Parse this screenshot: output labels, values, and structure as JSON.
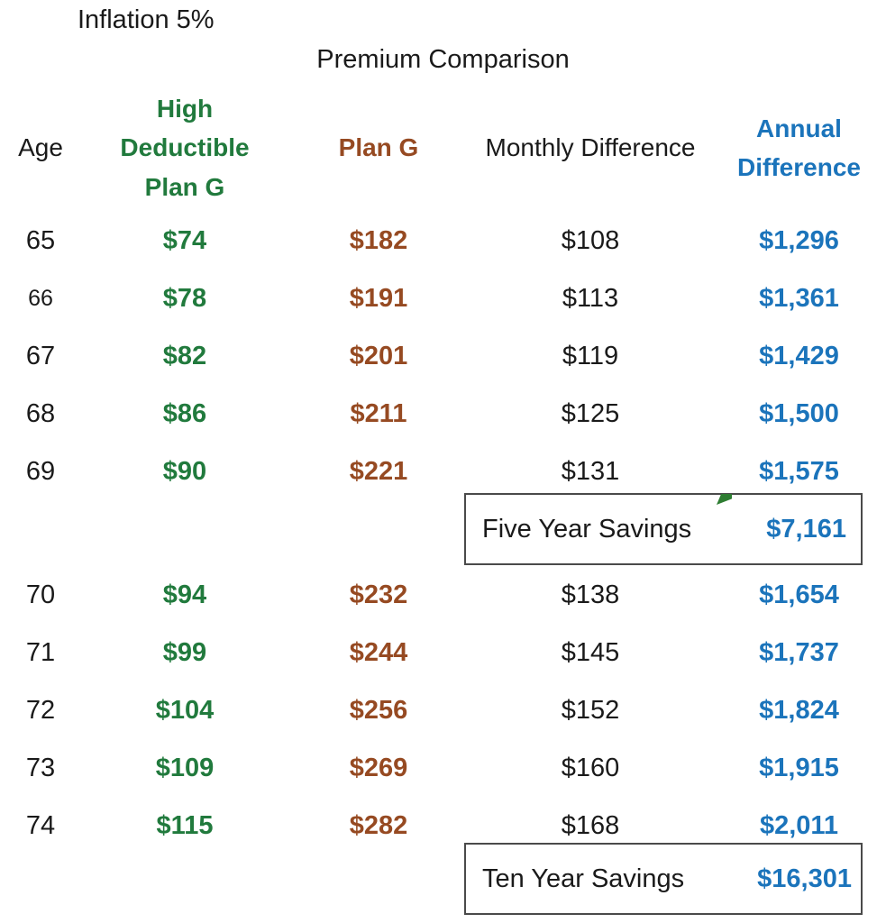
{
  "colors": {
    "green": "#217a3d",
    "brown": "#964a22",
    "blue": "#1b74bb",
    "text": "#1a1a1a",
    "box-border": "#4a4a4a",
    "marker-green": "#2e7d32"
  },
  "chart_data": {
    "type": "table",
    "subtitle": "Inflation 5%",
    "title": "Premium Comparison",
    "columns": [
      "Age",
      "High Deductible Plan G",
      "Plan G",
      "Monthly Difference",
      "Annual Difference"
    ],
    "column_colors": [
      "#1a1a1a",
      "#217a3d",
      "#964a22",
      "#1a1a1a",
      "#1b74bb"
    ],
    "rows": [
      {
        "age": "65",
        "hdg": "$74",
        "plang": "$182",
        "monthly": "$108",
        "annual": "$1,296"
      },
      {
        "age": "66",
        "hdg": "$78",
        "plang": "$191",
        "monthly": "$113",
        "annual": "$1,361"
      },
      {
        "age": "67",
        "hdg": "$82",
        "plang": "$201",
        "monthly": "$119",
        "annual": "$1,429"
      },
      {
        "age": "68",
        "hdg": "$86",
        "plang": "$211",
        "monthly": "$125",
        "annual": "$1,500"
      },
      {
        "age": "69",
        "hdg": "$90",
        "plang": "$221",
        "monthly": "$131",
        "annual": "$1,575"
      },
      {
        "age": "70",
        "hdg": "$94",
        "plang": "$232",
        "monthly": "$138",
        "annual": "$1,654"
      },
      {
        "age": "71",
        "hdg": "$99",
        "plang": "$244",
        "monthly": "$145",
        "annual": "$1,737"
      },
      {
        "age": "72",
        "hdg": "$104",
        "plang": "$256",
        "monthly": "$152",
        "annual": "$1,824"
      },
      {
        "age": "73",
        "hdg": "$109",
        "plang": "$269",
        "monthly": "$160",
        "annual": "$1,915"
      },
      {
        "age": "74",
        "hdg": "$115",
        "plang": "$282",
        "monthly": "$168",
        "annual": "$2,011"
      }
    ],
    "summary_rows": [
      {
        "label": "Five Year Savings",
        "value": "$7,161"
      },
      {
        "label": "Ten Year Savings",
        "value": "$16,301"
      }
    ]
  }
}
